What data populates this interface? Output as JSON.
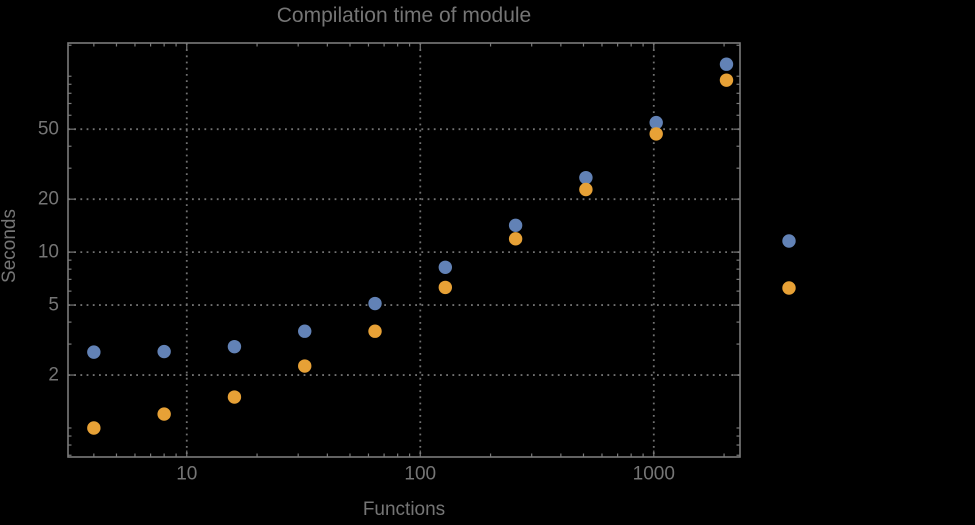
{
  "colors": {
    "background": "#000000",
    "text": "#757575",
    "frame": "#7A7A7A",
    "grid": "#717171",
    "series_blue": "#6282B6",
    "series_orange": "#E7A136"
  },
  "chart_data": {
    "type": "scatter",
    "title": "Compilation time of module",
    "xlabel": "Functions",
    "ylabel": "Seconds",
    "x_scale": "log",
    "y_scale": "log",
    "x_range": [
      3.1,
      2340
    ],
    "y_range": [
      0.684,
      154.5
    ],
    "grid": {
      "style": "dotted",
      "at": "major-ticks"
    },
    "x": [
      4,
      8,
      16,
      32,
      64,
      128,
      256,
      512,
      1024,
      2048
    ],
    "series": [
      {
        "name": "blue",
        "color": "#6282B6",
        "marker": "disk",
        "values": [
          2.7,
          2.72,
          2.9,
          3.55,
          5.1,
          8.2,
          14.2,
          26.5,
          54.5,
          117
        ]
      },
      {
        "name": "orange",
        "color": "#E7A136",
        "marker": "disk",
        "values": [
          1.0,
          1.2,
          1.5,
          2.25,
          3.55,
          6.3,
          11.9,
          22.7,
          47,
          95
        ]
      }
    ],
    "legend_markers": [
      {
        "series": "blue",
        "color": "#6282B6",
        "px": [
          789,
          241
        ]
      },
      {
        "series": "orange",
        "color": "#E7A136",
        "px": [
          789,
          288
        ]
      }
    ],
    "x_ticks": {
      "major": [
        10,
        100,
        1000
      ],
      "major_labels": [
        "10",
        "100",
        "1000"
      ],
      "minor": [
        4,
        5,
        6,
        7,
        8,
        9,
        20,
        30,
        40,
        50,
        60,
        70,
        80,
        90,
        200,
        300,
        400,
        500,
        600,
        700,
        800,
        900,
        2000
      ]
    },
    "y_ticks": {
      "major": [
        2,
        5,
        10,
        20,
        50
      ],
      "major_labels": [
        "2",
        "5",
        "10",
        "20",
        "50"
      ],
      "minor": [
        0.7,
        0.8,
        0.9,
        1,
        3,
        4,
        6,
        7,
        8,
        9,
        30,
        40,
        60,
        70,
        80,
        90,
        100,
        150
      ]
    }
  }
}
